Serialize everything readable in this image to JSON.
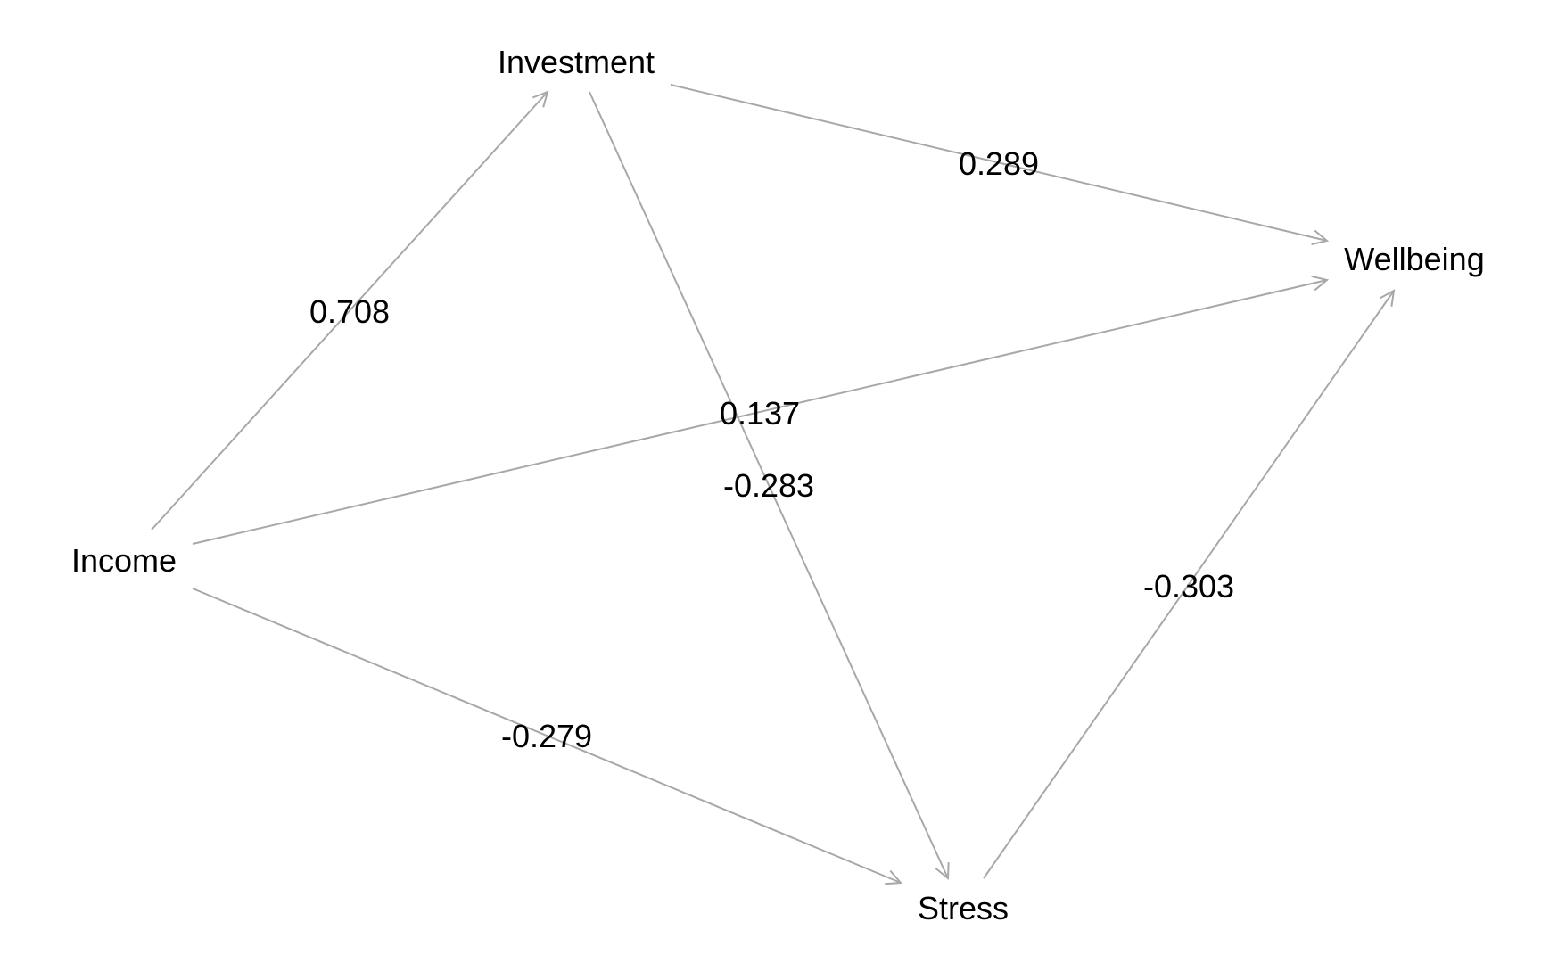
{
  "colors": {
    "edge": "#a8a8a8",
    "text": "#000000",
    "background": "#ffffff"
  },
  "nodes": [
    {
      "id": "investment",
      "label": "Investment"
    },
    {
      "id": "wellbeing",
      "label": "Wellbeing"
    },
    {
      "id": "income",
      "label": "Income"
    },
    {
      "id": "stress",
      "label": "Stress"
    }
  ],
  "edges": [
    {
      "from": "income",
      "to": "investment",
      "label": "0.708"
    },
    {
      "from": "investment",
      "to": "wellbeing",
      "label": "0.289"
    },
    {
      "from": "income",
      "to": "wellbeing",
      "label": "0.137"
    },
    {
      "from": "investment",
      "to": "stress",
      "label": "-0.283"
    },
    {
      "from": "stress",
      "to": "wellbeing",
      "label": "-0.303"
    },
    {
      "from": "income",
      "to": "stress",
      "label": "-0.279"
    }
  ]
}
